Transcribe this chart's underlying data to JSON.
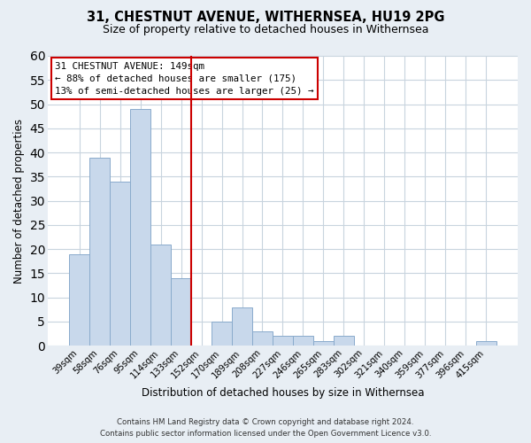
{
  "title": "31, CHESTNUT AVENUE, WITHERNSEA, HU19 2PG",
  "subtitle": "Size of property relative to detached houses in Withernsea",
  "xlabel": "Distribution of detached houses by size in Withernsea",
  "ylabel": "Number of detached properties",
  "bar_color": "#c8d8eb",
  "bar_edge_color": "#8aabcc",
  "categories": [
    "39sqm",
    "58sqm",
    "76sqm",
    "95sqm",
    "114sqm",
    "133sqm",
    "152sqm",
    "170sqm",
    "189sqm",
    "208sqm",
    "227sqm",
    "246sqm",
    "265sqm",
    "283sqm",
    "302sqm",
    "321sqm",
    "340sqm",
    "359sqm",
    "377sqm",
    "396sqm",
    "415sqm"
  ],
  "values": [
    19,
    39,
    34,
    49,
    21,
    14,
    0,
    5,
    8,
    3,
    2,
    2,
    1,
    2,
    0,
    0,
    0,
    0,
    0,
    0,
    1
  ],
  "ylim": [
    0,
    60
  ],
  "yticks": [
    0,
    5,
    10,
    15,
    20,
    25,
    30,
    35,
    40,
    45,
    50,
    55,
    60
  ],
  "vline_x_index": 6,
  "vline_color": "#cc0000",
  "annotation_title": "31 CHESTNUT AVENUE: 149sqm",
  "annotation_line1": "← 88% of detached houses are smaller (175)",
  "annotation_line2": "13% of semi-detached houses are larger (25) →",
  "footer_line1": "Contains HM Land Registry data © Crown copyright and database right 2024.",
  "footer_line2": "Contains public sector information licensed under the Open Government Licence v3.0.",
  "background_color": "#e8eef4",
  "plot_bg_color": "#ffffff",
  "grid_color": "#c8d4de"
}
